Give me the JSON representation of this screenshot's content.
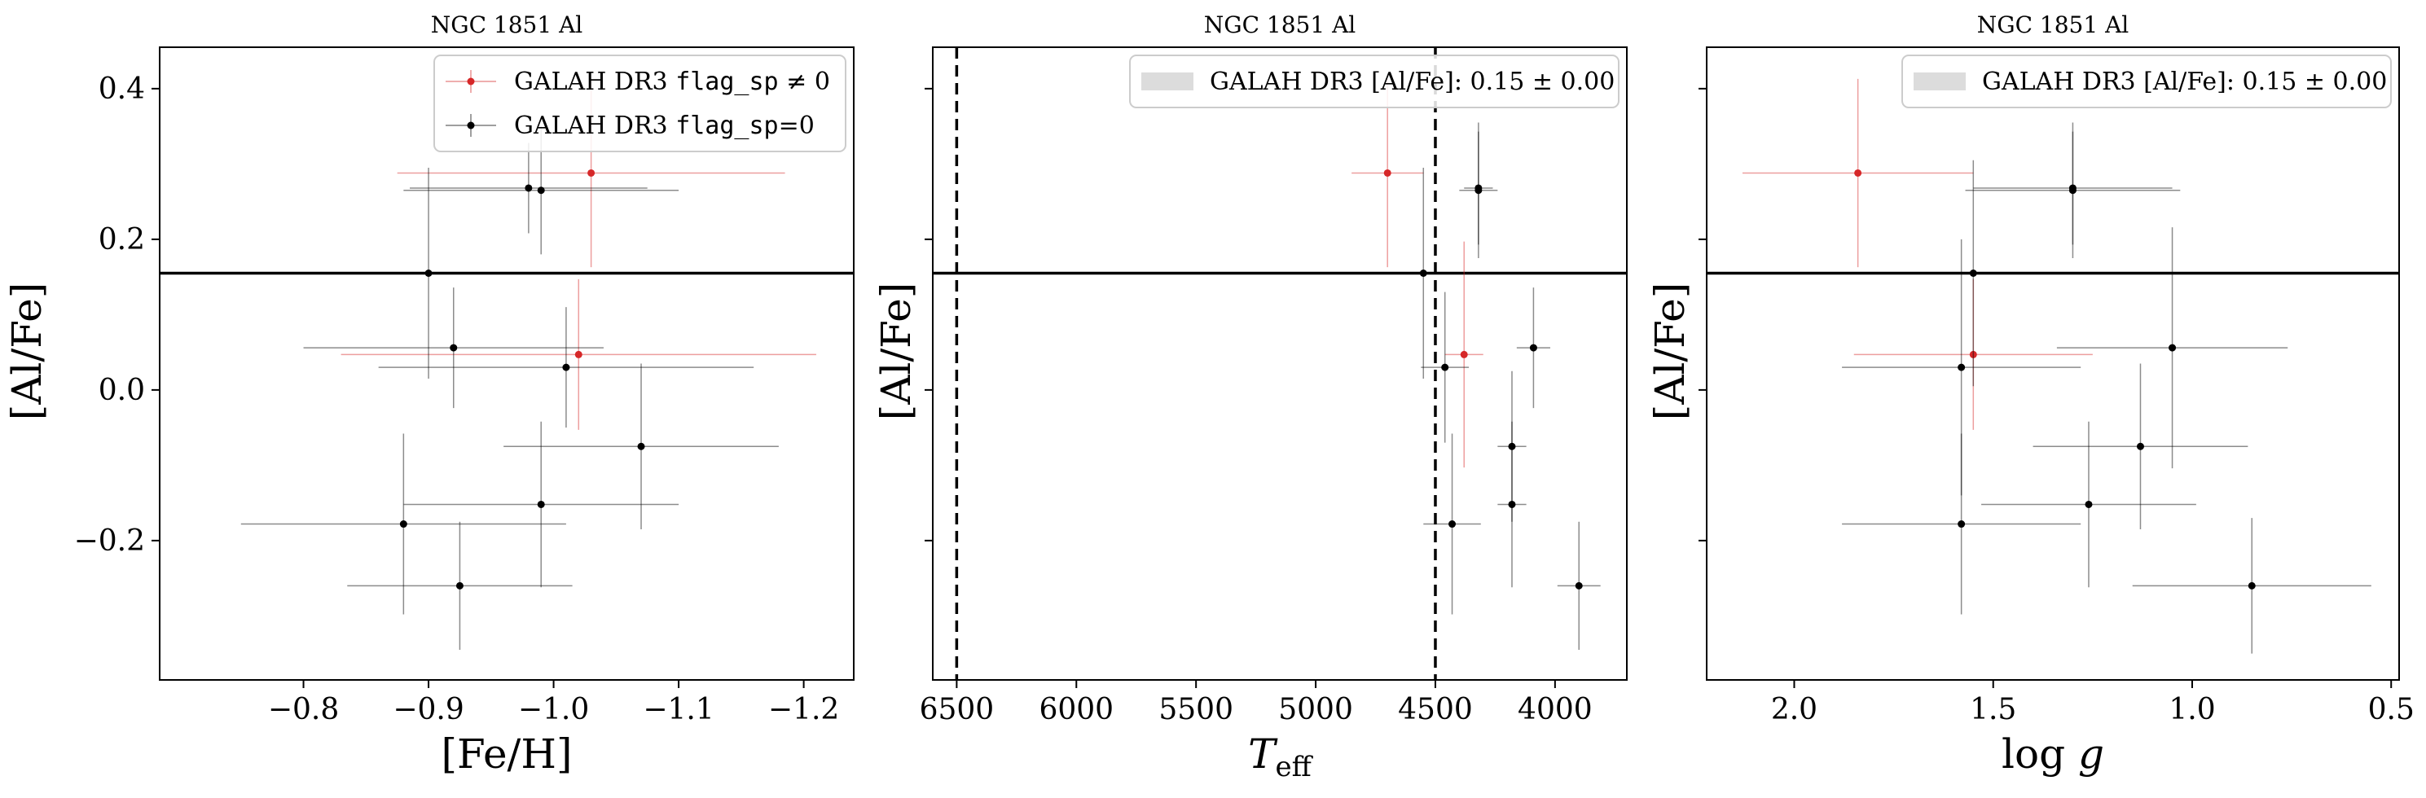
{
  "chart_data": [
    {
      "type": "scatter",
      "title": "NGC 1851 Al",
      "xlabel": "[Fe/H]",
      "ylabel": "[Al/Fe]",
      "xlim": [
        -0.685,
        -1.24
      ],
      "ylim": [
        -0.385,
        0.455
      ],
      "xticks": [
        -0.8,
        -0.9,
        -1.0,
        -1.1,
        -1.2
      ],
      "xtick_labels": [
        "−0.8",
        "−0.9",
        "−1.0",
        "−1.1",
        "−1.2"
      ],
      "yticks": [
        -0.2,
        0.0,
        0.2,
        0.4
      ],
      "ytick_labels": [
        "−0.2",
        "0.0",
        "0.2",
        "0.4"
      ],
      "hline": 0.155,
      "legend": {
        "position": "upper right",
        "entries": [
          {
            "label_prefix": "GALAH DR3 ",
            "label_code": "flag_sp",
            "label_suffix": " ≠ 0",
            "color": "#d62728"
          },
          {
            "label_prefix": "GALAH DR3 ",
            "label_code": "flag_sp",
            "label_suffix": "=0",
            "color": "#000000"
          }
        ]
      },
      "series": [
        {
          "color": "#d62728",
          "points": [
            {
              "x": -1.03,
              "y": 0.288,
              "xerr": 0.155,
              "yerr": 0.125
            },
            {
              "x": -1.02,
              "y": 0.047,
              "xerr": 0.19,
              "yerr": 0.1
            }
          ]
        },
        {
          "color": "#000000",
          "points": [
            {
              "x": -0.98,
              "y": 0.268,
              "xerr": 0.095,
              "yerr": 0.06
            },
            {
              "x": -0.99,
              "y": 0.265,
              "xerr": 0.11,
              "yerr": 0.085
            },
            {
              "x": -0.9,
              "y": 0.155,
              "xerr": 0.0,
              "yerr": 0.14
            },
            {
              "x": -0.92,
              "y": 0.056,
              "xerr": 0.12,
              "yerr": 0.08
            },
            {
              "x": -1.01,
              "y": 0.03,
              "xerr": 0.15,
              "yerr": 0.08
            },
            {
              "x": -1.07,
              "y": -0.075,
              "xerr": 0.11,
              "yerr": 0.11
            },
            {
              "x": -0.99,
              "y": -0.152,
              "xerr": 0.11,
              "yerr": 0.11
            },
            {
              "x": -0.88,
              "y": -0.178,
              "xerr": 0.13,
              "yerr": 0.12
            },
            {
              "x": -0.925,
              "y": -0.26,
              "xerr": 0.09,
              "yerr": 0.085
            }
          ]
        }
      ]
    },
    {
      "type": "scatter",
      "title": "NGC 1851 Al",
      "xlabel": "T_eff",
      "ylabel": "[Al/Fe]",
      "xlim": [
        6600,
        3700
      ],
      "ylim": [
        -0.385,
        0.455
      ],
      "xticks": [
        6500,
        6000,
        5500,
        5000,
        4500,
        4000
      ],
      "xtick_labels": [
        "6500",
        "6000",
        "5500",
        "5000",
        "4500",
        "4000"
      ],
      "yticks": [
        -0.2,
        0.0,
        0.2,
        0.4
      ],
      "ytick_labels": [
        "",
        "",
        "",
        ""
      ],
      "hline": 0.155,
      "vlines": [
        6500,
        4500
      ],
      "legend": {
        "position": "upper right",
        "entries": [
          {
            "label_prefix": "GALAH DR3 [Al/Fe]: ",
            "label_suffix": "0.15 ± 0.00",
            "color": "#dcdcdc",
            "patch": true
          }
        ]
      },
      "series": [
        {
          "color": "#d62728",
          "points": [
            {
              "x": 4700,
              "y": 0.288,
              "xerr": 150,
              "yerr": 0.125
            },
            {
              "x": 4380,
              "y": 0.047,
              "xerr": 80,
              "yerr": 0.15
            }
          ]
        },
        {
          "color": "#000000",
          "points": [
            {
              "x": 4320,
              "y": 0.268,
              "xerr": 60,
              "yerr": 0.075
            },
            {
              "x": 4320,
              "y": 0.265,
              "xerr": 80,
              "yerr": 0.09
            },
            {
              "x": 4550,
              "y": 0.155,
              "xerr": 50,
              "yerr": 0.14
            },
            {
              "x": 4090,
              "y": 0.056,
              "xerr": 70,
              "yerr": 0.08
            },
            {
              "x": 4460,
              "y": 0.03,
              "xerr": 100,
              "yerr": 0.1
            },
            {
              "x": 4180,
              "y": -0.075,
              "xerr": 60,
              "yerr": 0.1
            },
            {
              "x": 4180,
              "y": -0.152,
              "xerr": 60,
              "yerr": 0.11
            },
            {
              "x": 4430,
              "y": -0.178,
              "xerr": 120,
              "yerr": 0.12
            },
            {
              "x": 3900,
              "y": -0.26,
              "xerr": 90,
              "yerr": 0.085
            }
          ]
        }
      ]
    },
    {
      "type": "scatter",
      "title": "NGC 1851 Al",
      "xlabel": "log g",
      "ylabel": "[Al/Fe]",
      "xlim": [
        2.22,
        0.48
      ],
      "ylim": [
        -0.385,
        0.455
      ],
      "xticks": [
        2.0,
        1.5,
        1.0,
        0.5
      ],
      "xtick_labels": [
        "2.0",
        "1.5",
        "1.0",
        "0.5"
      ],
      "yticks": [
        -0.2,
        0.0,
        0.2,
        0.4
      ],
      "ytick_labels": [
        "",
        "",
        "",
        ""
      ],
      "hline": 0.155,
      "legend": {
        "position": "upper right",
        "entries": [
          {
            "label_prefix": "GALAH DR3 [Al/Fe]: ",
            "label_suffix": "0.15 ± 0.00",
            "color": "#dcdcdc",
            "patch": true
          }
        ]
      },
      "series": [
        {
          "color": "#d62728",
          "points": [
            {
              "x": 1.84,
              "y": 0.288,
              "xerr": 0.29,
              "yerr": 0.125
            },
            {
              "x": 1.55,
              "y": 0.047,
              "xerr": 0.3,
              "yerr": 0.1
            }
          ]
        },
        {
          "color": "#000000",
          "points": [
            {
              "x": 1.3,
              "y": 0.268,
              "xerr": 0.25,
              "yerr": 0.075
            },
            {
              "x": 1.3,
              "y": 0.265,
              "xerr": 0.27,
              "yerr": 0.09
            },
            {
              "x": 1.55,
              "y": 0.155,
              "xerr": 0.0,
              "yerr": 0.15
            },
            {
              "x": 1.05,
              "y": 0.056,
              "xerr": 0.29,
              "yerr": 0.16
            },
            {
              "x": 1.58,
              "y": 0.03,
              "xerr": 0.3,
              "yerr": 0.17
            },
            {
              "x": 1.13,
              "y": -0.075,
              "xerr": 0.27,
              "yerr": 0.11
            },
            {
              "x": 1.26,
              "y": -0.152,
              "xerr": 0.27,
              "yerr": 0.11
            },
            {
              "x": 1.58,
              "y": -0.178,
              "xerr": 0.3,
              "yerr": 0.12
            },
            {
              "x": 0.85,
              "y": -0.26,
              "xerr": 0.3,
              "yerr": 0.09
            }
          ]
        }
      ]
    }
  ]
}
